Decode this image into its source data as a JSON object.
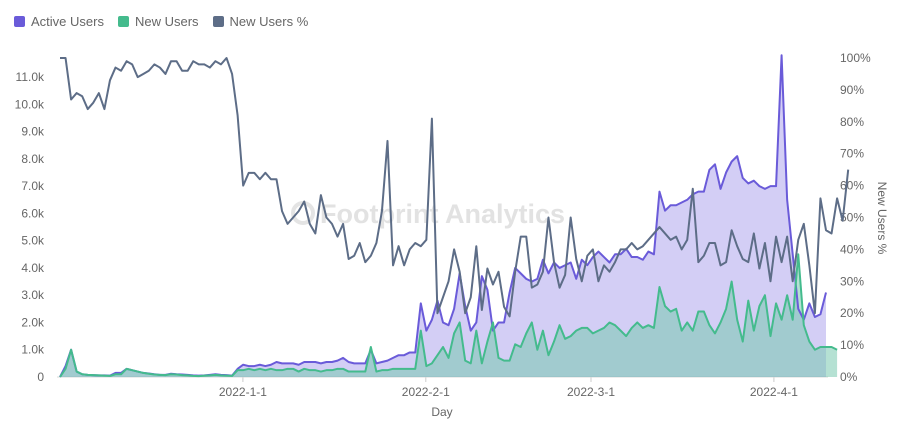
{
  "legend": [
    {
      "label": "Active Users",
      "color": "#6a5bd9"
    },
    {
      "label": "New Users",
      "color": "#44bb8d"
    },
    {
      "label": "New Users %",
      "color": "#5d6d87"
    }
  ],
  "watermark": "Footprint Analytics",
  "chart_data": {
    "type": "line",
    "xlabel": "Day",
    "ylabel_right": "New Users %",
    "x_start": "2021-12-01",
    "x_end": "2022-04-12",
    "x_ticks": [
      "2022-1-1",
      "2022-2-1",
      "2022-3-1",
      "2022-4-1"
    ],
    "y_left_ticks": [
      "0",
      "1.0k",
      "2.0k",
      "3.0k",
      "4.0k",
      "5.0k",
      "6.0k",
      "7.0k",
      "8.0k",
      "9.0k",
      "10.0k",
      "11.0k"
    ],
    "y_left_range": [
      0,
      11700
    ],
    "y_right_ticks": [
      "0%",
      "10%",
      "20%",
      "30%",
      "40%",
      "50%",
      "60%",
      "70%",
      "80%",
      "90%",
      "100%"
    ],
    "y_right_range": [
      0,
      100
    ],
    "series": [
      {
        "name": "Active Users",
        "axis": "left",
        "color": "#6a5bd9",
        "values": [
          0,
          400,
          1000,
          200,
          100,
          80,
          70,
          60,
          60,
          50,
          150,
          150,
          300,
          250,
          200,
          150,
          130,
          100,
          80,
          80,
          120,
          100,
          90,
          80,
          60,
          50,
          60,
          80,
          100,
          80,
          70,
          50,
          300,
          450,
          400,
          400,
          450,
          400,
          450,
          550,
          500,
          500,
          500,
          450,
          550,
          550,
          550,
          500,
          550,
          550,
          600,
          700,
          550,
          500,
          500,
          500,
          1000,
          500,
          550,
          600,
          700,
          800,
          800,
          900,
          900,
          2700,
          1700,
          2100,
          2800,
          2000,
          1900,
          2500,
          3800,
          2600,
          1700,
          2000,
          3700,
          3200,
          1700,
          2000,
          2000,
          3100,
          4000,
          3800,
          3600,
          3500,
          3600,
          4300,
          3800,
          4200,
          4000,
          4100,
          4200,
          3600,
          4300,
          4100,
          4400,
          4600,
          4400,
          4200,
          4500,
          4500,
          4700,
          4400,
          4400,
          4300,
          4600,
          4500,
          6800,
          6100,
          6300,
          6300,
          6400,
          6500,
          6700,
          6800,
          6800,
          7600,
          7800,
          6900,
          7500,
          7900,
          8100,
          7300,
          7100,
          7200,
          7000,
          6900,
          7000,
          7000,
          11800,
          6500,
          4500,
          2500,
          2100,
          2700,
          2200,
          2300,
          3100
        ]
      },
      {
        "name": "New Users",
        "axis": "left",
        "color": "#44bb8d",
        "values": [
          0,
          300,
          1000,
          200,
          100,
          80,
          70,
          60,
          50,
          40,
          100,
          100,
          300,
          250,
          200,
          150,
          120,
          90,
          80,
          70,
          100,
          90,
          70,
          60,
          40,
          30,
          50,
          60,
          80,
          60,
          50,
          40,
          250,
          250,
          300,
          250,
          300,
          250,
          300,
          250,
          250,
          300,
          300,
          200,
          300,
          250,
          250,
          200,
          250,
          250,
          300,
          300,
          200,
          200,
          200,
          200,
          1100,
          200,
          250,
          250,
          300,
          300,
          300,
          300,
          300,
          1700,
          400,
          500,
          800,
          1100,
          700,
          1600,
          2000,
          600,
          500,
          1700,
          500,
          1300,
          2000,
          700,
          600,
          600,
          1200,
          1100,
          1600,
          2000,
          1000,
          1700,
          800,
          1300,
          1900,
          1400,
          1500,
          1700,
          1800,
          1800,
          1600,
          1700,
          1800,
          2000,
          1900,
          1700,
          1500,
          1800,
          2000,
          1800,
          1900,
          1800,
          3300,
          2600,
          2400,
          2500,
          1700,
          2000,
          1700,
          2400,
          2400,
          1900,
          1600,
          2000,
          2500,
          3500,
          2100,
          1300,
          2800,
          1700,
          2600,
          3000,
          1500,
          2700,
          2100,
          3000,
          2100,
          4500,
          1900,
          1300,
          1000,
          1100,
          1100,
          1100,
          1000
        ]
      },
      {
        "name": "New Users %",
        "axis": "right",
        "color": "#5d6d87",
        "values": [
          100,
          100,
          87,
          89,
          88,
          84,
          86,
          89,
          84,
          93,
          97,
          96,
          99,
          98,
          94,
          95,
          96,
          98,
          97,
          95,
          99,
          99,
          96,
          96,
          99,
          98,
          98,
          97,
          99,
          98,
          100,
          95,
          82,
          60,
          64,
          64,
          62,
          64,
          62,
          62,
          52,
          48,
          50,
          52,
          55,
          48,
          45,
          57,
          50,
          48,
          44,
          48,
          37,
          38,
          42,
          36,
          38,
          42,
          52,
          74,
          35,
          41,
          35,
          40,
          42,
          41,
          43,
          81,
          20,
          25,
          30,
          40,
          33,
          20,
          25,
          41,
          21,
          34,
          29,
          33,
          22,
          19,
          33,
          44,
          44,
          28,
          29,
          33,
          50,
          36,
          28,
          32,
          50,
          37,
          30,
          38,
          40,
          30,
          35,
          33,
          36,
          40,
          40,
          42,
          40,
          41,
          43,
          45,
          47,
          45,
          43,
          44,
          40,
          43,
          59,
          36,
          38,
          42,
          42,
          35,
          36,
          46,
          41,
          37,
          36,
          45,
          34,
          42,
          30,
          44,
          36,
          44,
          30,
          43,
          48,
          35,
          20,
          56,
          46,
          45,
          56,
          49,
          65
        ]
      }
    ]
  }
}
